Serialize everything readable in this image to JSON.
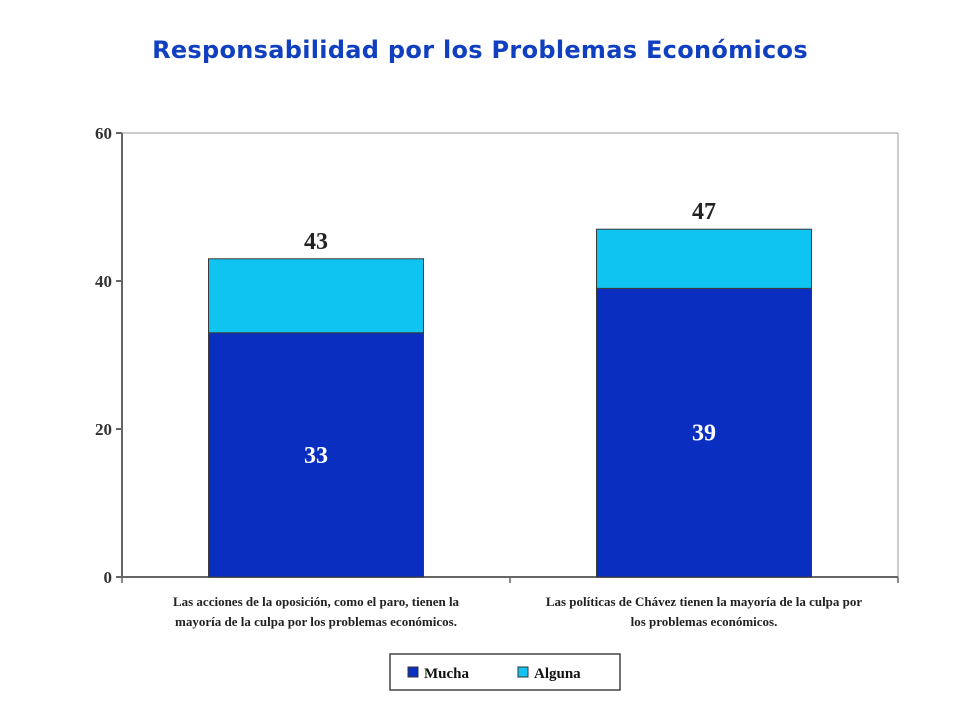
{
  "title": "Responsabilidad por los Problemas Económicos",
  "colors": {
    "title": "#1040c0",
    "mucha": "#0a2fc0",
    "alguna": "#10c4f2",
    "axis": "#666666"
  },
  "chart_data": {
    "type": "bar",
    "stacked": true,
    "categories": [
      [
        "Las acciones de la oposición, como el paro, tienen la",
        "mayoría de la culpa por los problemas económicos."
      ],
      [
        "Las políticas de Chávez tienen la mayoría de la culpa por",
        "los problemas económicos."
      ]
    ],
    "series": [
      {
        "name": "Mucha",
        "values": [
          33,
          39
        ]
      },
      {
        "name": "Alguna",
        "values": [
          10,
          8
        ]
      }
    ],
    "totals": [
      43,
      47
    ],
    "ylim": [
      0,
      60
    ],
    "yticks": [
      0,
      20,
      40,
      60
    ],
    "grid": false,
    "legend": "bottom"
  }
}
